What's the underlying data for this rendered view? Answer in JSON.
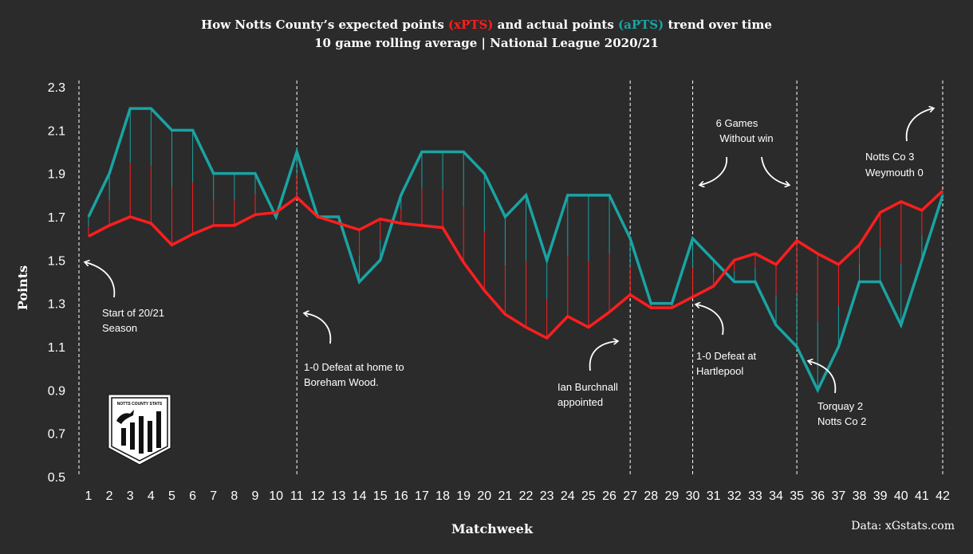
{
  "colors": {
    "background": "#2b2b2b",
    "xpts": "#ff1e1e",
    "apts": "#1aa3a3",
    "text": "#ffffff"
  },
  "chart_data": {
    "type": "line",
    "title": {
      "p1": "How Notts County’s expected points ",
      "xpts_label": "(xPTS)",
      "p2": " and actual points ",
      "apts_label": "(aPTS)",
      "p3": " trend over time"
    },
    "subtitle": "10 game rolling average | National League 2020/21",
    "xlabel": "Matchweek",
    "ylabel": "Points",
    "source": "Data: xGstats.com",
    "ylim": [
      0.5,
      2.3
    ],
    "yticks": [
      "0.5",
      "0.7",
      "0.9",
      "1.1",
      "1.3",
      "1.5",
      "1.7",
      "1.9",
      "2.1",
      "2.3"
    ],
    "x": [
      1,
      2,
      3,
      4,
      5,
      6,
      7,
      8,
      9,
      10,
      11,
      12,
      13,
      14,
      15,
      16,
      17,
      18,
      19,
      20,
      21,
      22,
      23,
      24,
      25,
      26,
      27,
      28,
      29,
      30,
      31,
      32,
      33,
      34,
      35,
      36,
      37,
      38,
      39,
      40,
      41,
      42
    ],
    "series": [
      {
        "key": "xpts",
        "values": [
          1.61,
          1.66,
          1.7,
          1.67,
          1.57,
          1.62,
          1.66,
          1.66,
          1.71,
          1.72,
          1.79,
          1.7,
          1.67,
          1.64,
          1.69,
          1.67,
          1.66,
          1.65,
          1.49,
          1.36,
          1.25,
          1.19,
          1.14,
          1.24,
          1.19,
          1.26,
          1.34,
          1.28,
          1.28,
          1.33,
          1.38,
          1.5,
          1.53,
          1.48,
          1.59,
          1.53,
          1.48,
          1.57,
          1.72,
          1.77,
          1.73,
          1.82
        ]
      },
      {
        "key": "apts",
        "values": [
          1.7,
          1.9,
          2.2,
          2.2,
          2.1,
          2.1,
          1.9,
          1.9,
          1.9,
          1.7,
          2.0,
          1.7,
          1.7,
          1.4,
          1.5,
          1.8,
          2.0,
          2.0,
          2.0,
          1.9,
          1.7,
          1.8,
          1.5,
          1.8,
          1.8,
          1.8,
          1.6,
          1.3,
          1.3,
          1.6,
          1.5,
          1.4,
          1.4,
          1.2,
          1.1,
          0.9,
          1.1,
          1.4,
          1.4,
          1.2,
          1.5,
          1.8
        ]
      }
    ],
    "event_lines": [
      1,
      11,
      27,
      30,
      35,
      42
    ],
    "annotations": [
      {
        "lines": [
          "Start of 20/21",
          "Season"
        ]
      },
      {
        "lines": [
          "1-0 Defeat at home to",
          "Boreham Wood."
        ]
      },
      {
        "lines": [
          "Ian Burchnall",
          "appointed"
        ]
      },
      {
        "lines": [
          "1-0 Defeat at",
          "Hartlepool"
        ]
      },
      {
        "lines": [
          "6 Games",
          "Without win"
        ]
      },
      {
        "lines": [
          "Torquay 2",
          "Notts Co 2"
        ]
      },
      {
        "lines": [
          "Notts Co 3",
          "Weymouth  0"
        ]
      }
    ],
    "logo_text": "NOTTS COUNTY STATS"
  }
}
